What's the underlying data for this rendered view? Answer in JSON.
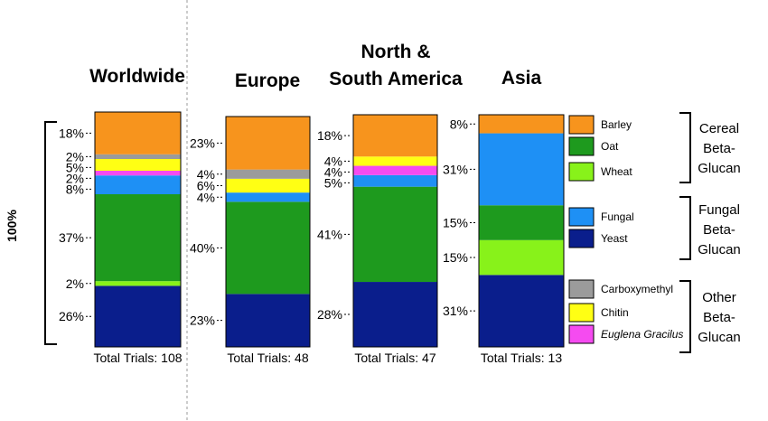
{
  "chart_data": {
    "type": "bar",
    "stacked": true,
    "normalized": true,
    "y_label": "100%",
    "stack_order": [
      "Yeast",
      "Wheat",
      "Oat",
      "Fungal",
      "Euglena Gracilus",
      "Chitin",
      "Carboxymethyl",
      "Barley"
    ],
    "colors": {
      "Barley": "#F7941D",
      "Oat": "#1E9A1E",
      "Wheat": "#88F21A",
      "Fungal": "#1E90F5",
      "Yeast": "#0A1E8C",
      "Carboxymethyl": "#9B9B9B",
      "Chitin": "#FFFF14",
      "Euglena Gracilus": "#F54BF0"
    },
    "bars": [
      {
        "title": "Worldwide",
        "total": "Total Trials: 108",
        "segments": [
          {
            "series": "Yeast",
            "value": 26,
            "label": "26%"
          },
          {
            "series": "Wheat",
            "value": 2,
            "label": "2%"
          },
          {
            "series": "Oat",
            "value": 37,
            "label": "37%"
          },
          {
            "series": "Fungal",
            "value": 8,
            "label": "8%"
          },
          {
            "series": "Euglena Gracilus",
            "value": 2,
            "label": "2%"
          },
          {
            "series": "Chitin",
            "value": 5,
            "label": "5%"
          },
          {
            "series": "Carboxymethyl",
            "value": 2,
            "label": "2%"
          },
          {
            "series": "Barley",
            "value": 18,
            "label": "18%"
          }
        ]
      },
      {
        "title": "Europe",
        "total": "Total Trials: 48",
        "segments": [
          {
            "series": "Yeast",
            "value": 23,
            "label": "23%"
          },
          {
            "series": "Oat",
            "value": 40,
            "label": "40%"
          },
          {
            "series": "Fungal",
            "value": 4,
            "label": "4%"
          },
          {
            "series": "Chitin",
            "value": 6,
            "label": "6%"
          },
          {
            "series": "Carboxymethyl",
            "value": 4,
            "label": "4%"
          },
          {
            "series": "Barley",
            "value": 23,
            "label": "23%"
          }
        ]
      },
      {
        "title": "North & South America",
        "title_lines": [
          "North &",
          "South America"
        ],
        "total": "Total Trials: 47",
        "segments": [
          {
            "series": "Yeast",
            "value": 28,
            "label": "28%"
          },
          {
            "series": "Oat",
            "value": 41,
            "label": "41%"
          },
          {
            "series": "Fungal",
            "value": 5,
            "label": "5%"
          },
          {
            "series": "Euglena Gracilus",
            "value": 4,
            "label": "4%"
          },
          {
            "series": "Chitin",
            "value": 4,
            "label": "4%"
          },
          {
            "series": "Barley",
            "value": 18,
            "label": "18%"
          }
        ]
      },
      {
        "title": "Asia",
        "total": "Total Trials: 13",
        "segments": [
          {
            "series": "Yeast",
            "value": 31,
            "label": "31%"
          },
          {
            "series": "Wheat",
            "value": 15,
            "label": "15%"
          },
          {
            "series": "Oat",
            "value": 15,
            "label": "15%"
          },
          {
            "series": "Fungal",
            "value": 31,
            "label": "31%"
          },
          {
            "series": "Barley",
            "value": 8,
            "label": "8%"
          }
        ]
      }
    ],
    "legend": [
      {
        "name": "Barley",
        "label": "Barley"
      },
      {
        "name": "Oat",
        "label": "Oat"
      },
      {
        "name": "Wheat",
        "label": "Wheat"
      },
      {
        "name": "Fungal",
        "label": "Fungal"
      },
      {
        "name": "Yeast",
        "label": "Yeast"
      },
      {
        "name": "Carboxymethyl",
        "label": "Carboxymethyl"
      },
      {
        "name": "Chitin",
        "label": "Chitin"
      },
      {
        "name": "Euglena Gracilus",
        "label": "Euglena Gracilus"
      }
    ],
    "legend_groups": [
      {
        "name": "Cereal Beta-Glucan",
        "lines": [
          "Cereal",
          "Beta-",
          "Glucan"
        ]
      },
      {
        "name": "Fungal Beta-Glucan",
        "lines": [
          "Fungal",
          "Beta-",
          "Glucan"
        ]
      },
      {
        "name": "Other Beta-Glucan",
        "lines": [
          "Other",
          "Beta-",
          "Glucan"
        ]
      }
    ]
  }
}
